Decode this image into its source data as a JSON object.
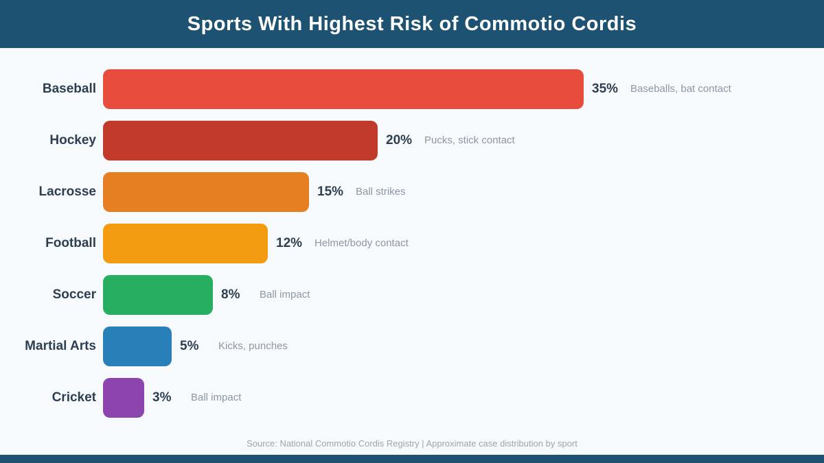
{
  "title": "Sports With Highest Risk of Commotio Cordis",
  "colors": {
    "header_bg": "#1d5273",
    "page_bg": "#f7fafc",
    "label_text": "#2c3e50",
    "value_text": "#2c3e50",
    "description_text": "#8d97a3",
    "footer_text": "#9aa5ad"
  },
  "chart_data": {
    "type": "bar",
    "orientation": "horizontal",
    "title": "Sports With Highest Risk of Commotio Cordis",
    "categories": [
      "Baseball",
      "Hockey",
      "Lacrosse",
      "Football",
      "Soccer",
      "Martial Arts",
      "Cricket"
    ],
    "values": [
      35,
      20,
      15,
      12,
      8,
      5,
      3
    ],
    "value_suffix": "%",
    "value_labels": [
      "35%",
      "20%",
      "15%",
      "12%",
      "8%",
      "5%",
      "3%"
    ],
    "descriptions": [
      "Baseballs, bat contact",
      "Pucks, stick contact",
      "Ball strikes",
      "Helmet/body contact",
      "Ball impact",
      "Kicks, punches",
      "Ball impact"
    ],
    "bar_colors": [
      "#e74c3c",
      "#c0392b",
      "#e67e22",
      "#f39c12",
      "#27ae60",
      "#2980b9",
      "#8e44ad"
    ],
    "xlim": [
      0,
      35
    ],
    "grid": false,
    "legend": false
  },
  "footer": {
    "source_note": "Source: National Commotio Cordis Registry  |  Approximate case distribution by sport"
  }
}
